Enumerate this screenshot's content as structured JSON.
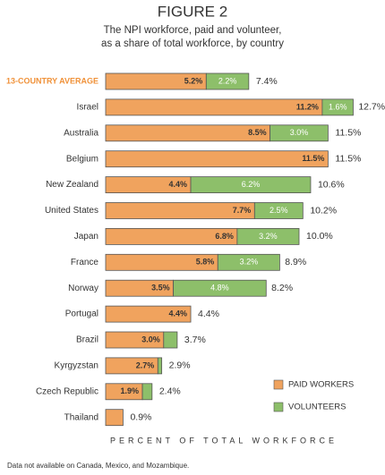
{
  "chart_data": {
    "type": "stacked-barh",
    "title": "FIGURE 2",
    "subtitle": [
      "The NPI workforce, paid and volunteer,",
      "as a share of total workforce, by country"
    ],
    "categories": [
      "13-COUNTRY AVERAGE",
      "Israel",
      "Australia",
      "Belgium",
      "New Zealand",
      "United States",
      "Japan",
      "France",
      "Norway",
      "Portugal",
      "Brazil",
      "Kyrgyzstan",
      "Czech Republic",
      "Thailand"
    ],
    "series": [
      {
        "name": "PAID WORKERS",
        "color": "#f0a35e",
        "values": [
          5.2,
          11.2,
          8.5,
          11.5,
          4.4,
          7.7,
          6.8,
          5.8,
          3.5,
          4.4,
          3.0,
          2.7,
          1.9,
          0.9
        ],
        "value_labels": [
          "5.2%",
          "11.2%",
          "8.5%",
          "11.5%",
          "4.4%",
          "7.7%",
          "6.8%",
          "5.8%",
          "3.5%",
          "4.4%",
          "3.0%",
          "2.7%",
          "1.9%",
          null
        ]
      },
      {
        "name": "VOLUNTEERS",
        "color": "#8dbf6a",
        "values": [
          2.2,
          1.6,
          3.0,
          null,
          6.2,
          2.5,
          3.2,
          3.2,
          4.8,
          null,
          0.7,
          0.2,
          0.5,
          null
        ],
        "value_labels": [
          "2.2%",
          "1.6%",
          "3.0%",
          null,
          "6.2%",
          "2.5%",
          "3.2%",
          "3.2%",
          "4.8%",
          null,
          null,
          null,
          null,
          null
        ]
      }
    ],
    "totals": [
      7.4,
      12.7,
      11.5,
      11.5,
      10.6,
      10.2,
      10.0,
      8.9,
      8.2,
      4.4,
      3.7,
      2.9,
      2.4,
      0.9
    ],
    "total_labels": [
      "7.4%",
      "12.7%",
      "11.5%",
      "11.5%",
      "10.6%",
      "10.2%",
      "10.0%",
      "8.9%",
      "8.2%",
      "4.4%",
      "3.7%",
      "2.9%",
      "2.4%",
      "0.9%"
    ],
    "xlabel": "PERCENT OF TOTAL WORKFORCE",
    "footnote": "Data not available on Canada, Mexico, and Mozambique."
  }
}
